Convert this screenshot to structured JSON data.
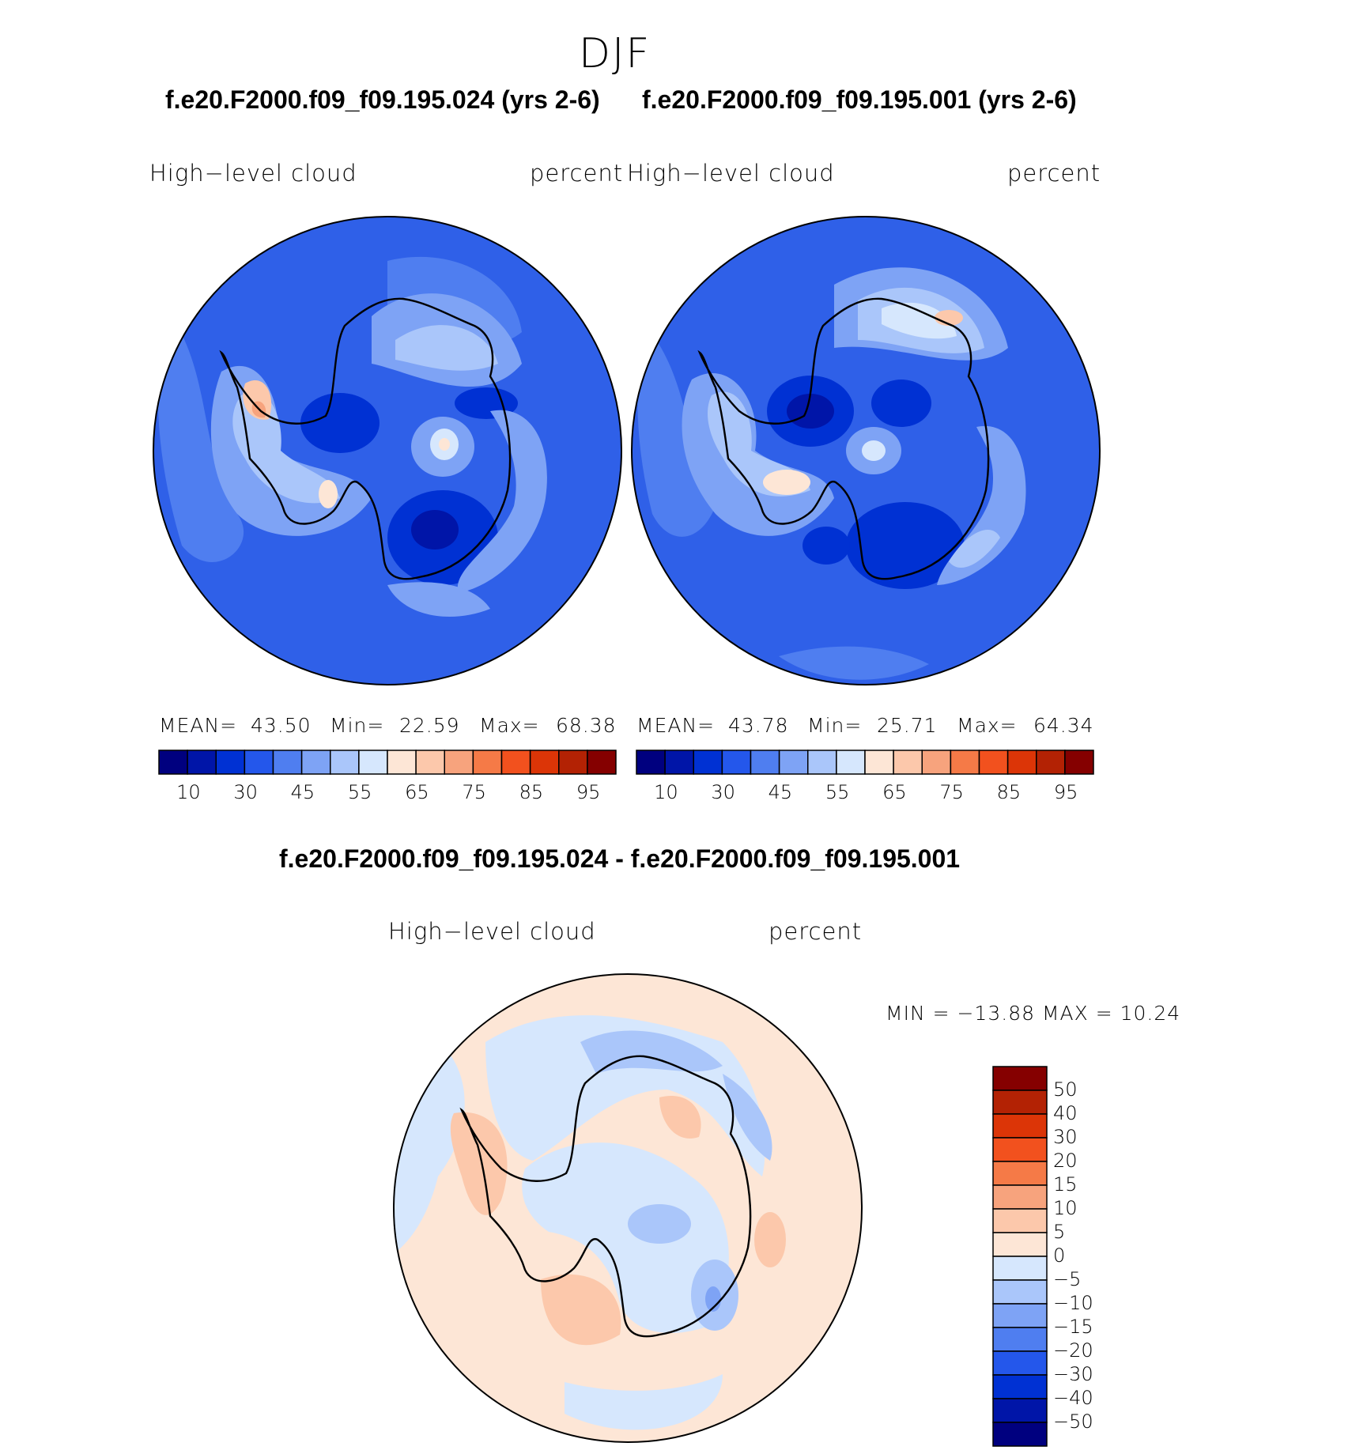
{
  "season": "DJF",
  "palette_levels": [
    "#00007f",
    "#0015a8",
    "#0031d3",
    "#2457eb",
    "#4f7ef0",
    "#7ea3f5",
    "#aac6fa",
    "#d6e7fd",
    "#fde6d6",
    "#fcc8ab",
    "#f7a37d",
    "#f57a47",
    "#f2511e",
    "#dc3507",
    "#b32204",
    "#850000"
  ],
  "panels": [
    {
      "title": "f.e20.F2000.f09_f09.195.024 (yrs 2-6)",
      "variable": "High−level  cloud",
      "units": "percent",
      "stats": {
        "mean_label": "MEAN=",
        "mean": "43.50",
        "min_label": "Min=",
        "min": "22.59",
        "max_label": "Max=",
        "max": "68.38"
      },
      "colorbar_labels": [
        "10",
        "30",
        "45",
        "55",
        "65",
        "75",
        "85",
        "95"
      ],
      "base_color": "#2f60e8"
    },
    {
      "title": "f.e20.F2000.f09_f09.195.001 (yrs 2-6)",
      "variable": "High−level  cloud",
      "units": "percent",
      "stats": {
        "mean_label": "MEAN=",
        "mean": "43.78",
        "min_label": "Min=",
        "min": "25.71",
        "max_label": "Max=",
        "max": "64.34"
      },
      "colorbar_labels": [
        "10",
        "30",
        "45",
        "55",
        "65",
        "75",
        "85",
        "95"
      ],
      "base_color": "#2f60e8"
    }
  ],
  "diff": {
    "title": "f.e20.F2000.f09_f09.195.024 - f.e20.F2000.f09_f09.195.001",
    "variable": "High−level  cloud",
    "units": "percent",
    "minmax": "MIN  =  −13.88  MAX  =    10.24",
    "colorbar_labels": [
      "50",
      "40",
      "30",
      "20",
      "15",
      "10",
      "5",
      "0",
      "−5",
      "−10",
      "−15",
      "−20",
      "−30",
      "−40",
      "−50"
    ],
    "base_color": "#d6e7fd"
  }
}
